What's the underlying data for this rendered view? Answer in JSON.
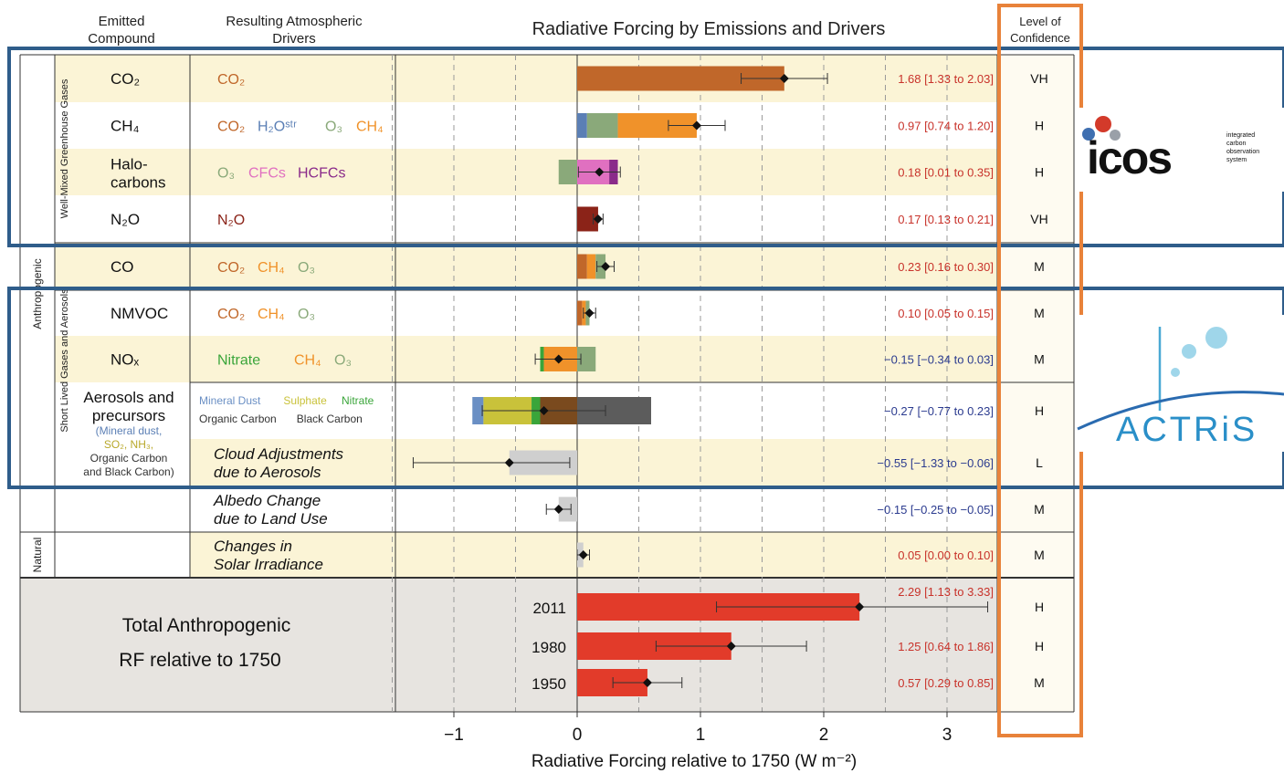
{
  "headers": {
    "emitted": [
      "Emitted",
      "Compound"
    ],
    "drivers": [
      "Resulting Atmospheric",
      "Drivers"
    ],
    "title": "Radiative Forcing by Emissions and Drivers",
    "confidence": [
      "Level of",
      "Confidence"
    ]
  },
  "groups": {
    "anthropogenic": "Anthropogenic",
    "wmghg": "Well-Mixed Greenhouse Gases",
    "slcf": "Short Lived Gases and Aerosols",
    "natural": "Natural"
  },
  "colors": {
    "co2": "#c0672a",
    "h2o": "#5b7fb5",
    "o3": "#8aa97a",
    "ch4": "#f0922a",
    "cfc": "#e070c0",
    "hcfc": "#8a2b8a",
    "n2o": "#8b2318",
    "nitrate": "#3aa53a",
    "mineral_dust": "#6a8fc4",
    "sulphate": "#c9c23a",
    "organic_carbon": "#7a4a1e",
    "black_carbon": "#5c5c5c",
    "cloud": "#cfcfcf",
    "total": "#e23b2a",
    "row_shade": "#fbf4d6",
    "value_text": "#c8322a",
    "neg_value_text": "#2b3b8f",
    "highlight_blue": "#2f5d8a",
    "highlight_orange": "#e8823a"
  },
  "rows": [
    {
      "compound": "CO₂",
      "drivers": [
        {
          "t": "CO₂",
          "c": "co2"
        }
      ],
      "value_text": "1.68 [1.33 to 2.03]",
      "confidence": "VH"
    },
    {
      "compound": "CH₄",
      "drivers": [
        {
          "t": "CO₂",
          "c": "co2"
        },
        {
          "t": "H₂Oˢᵗʳ",
          "c": "h2o"
        },
        {
          "t": "O₃",
          "c": "o3"
        },
        {
          "t": "CH₄",
          "c": "ch4"
        }
      ],
      "value_text": "0.97 [0.74 to 1.20]",
      "confidence": "H"
    },
    {
      "compound_lines": [
        "Halo-",
        "carbons"
      ],
      "drivers": [
        {
          "t": "O₃",
          "c": "o3"
        },
        {
          "t": "CFCs",
          "c": "cfc"
        },
        {
          "t": "HCFCs",
          "c": "hcfc"
        }
      ],
      "value_text": "0.18 [0.01 to 0.35]",
      "confidence": "H"
    },
    {
      "compound": "N₂O",
      "drivers": [
        {
          "t": "N₂O",
          "c": "n2o"
        }
      ],
      "value_text": "0.17 [0.13 to 0.21]",
      "confidence": "VH"
    },
    {
      "compound": "CO",
      "drivers": [
        {
          "t": "CO₂",
          "c": "co2"
        },
        {
          "t": "CH₄",
          "c": "ch4"
        },
        {
          "t": "O₃",
          "c": "o3"
        }
      ],
      "value_text": "0.23 [0.16 to 0.30]",
      "confidence": "M"
    },
    {
      "compound": "NMVOC",
      "drivers": [
        {
          "t": "CO₂",
          "c": "co2"
        },
        {
          "t": "CH₄",
          "c": "ch4"
        },
        {
          "t": "O₃",
          "c": "o3"
        }
      ],
      "value_text": "0.10 [0.05 to 0.15]",
      "confidence": "M"
    },
    {
      "compound": "NOₓ",
      "drivers": [
        {
          "t": "Nitrate",
          "c": "nitrate"
        },
        {
          "t": "CH₄",
          "c": "ch4"
        },
        {
          "t": "O₃",
          "c": "o3"
        }
      ],
      "value_text": "−0.15 [−0.34 to 0.03]",
      "confidence": "M"
    },
    {
      "compound_lines": [
        "Aerosols and",
        "precursors"
      ],
      "compound_sub": [
        "(Mineral dust,",
        "SO₂, NH₃,",
        "Organic Carbon",
        "and Black Carbon)"
      ],
      "drivers_line1": [
        {
          "t": "Mineral Dust",
          "c": "mineral_dust"
        },
        {
          "t": "Sulphate",
          "c": "sulphate"
        },
        {
          "t": "Nitrate",
          "c": "nitrate"
        }
      ],
      "drivers_line2": [
        {
          "t": "Organic Carbon",
          "c": "organic_carbon"
        },
        {
          "t": "Black Carbon",
          "c": "black_carbon"
        }
      ],
      "value_text": "−0.27 [−0.77 to 0.23]",
      "confidence": "H"
    },
    {
      "driver_lines": [
        "Cloud Adjustments",
        "due to Aerosols"
      ],
      "value_text": "−0.55 [−1.33 to −0.06]",
      "confidence": "L"
    },
    {
      "driver_lines": [
        "Albedo Change",
        "due to Land Use"
      ],
      "value_text": "−0.15 [−0.25 to −0.05]",
      "confidence": "M"
    },
    {
      "driver_lines": [
        "Changes in",
        "Solar Irradiance"
      ],
      "value_text": "0.05 [0.00 to 0.10]",
      "confidence": "M"
    }
  ],
  "total": {
    "label_lines": [
      "Total Anthropogenic",
      "RF relative to 1750"
    ],
    "years": [
      {
        "year": "2011",
        "value_text": "2.29 [1.13 to 3.33]",
        "confidence": "H"
      },
      {
        "year": "1980",
        "value_text": "1.25 [0.64 to 1.86]",
        "confidence": "H"
      },
      {
        "year": "1950",
        "value_text": "0.57 [0.29 to 0.85]",
        "confidence": "M"
      }
    ]
  },
  "logos": {
    "icos_word": "icos",
    "icos_tagline": [
      "integrated",
      "carbon",
      "observation",
      "system"
    ],
    "actris_word": "ACTRiS"
  },
  "chart_data": {
    "type": "bar",
    "orientation": "horizontal",
    "stacked": true,
    "title": "Radiative Forcing by Emissions and Drivers",
    "xlabel": "Radiative Forcing relative to 1750 (W m⁻²)",
    "xlim": [
      -1.5,
      3.4
    ],
    "xticks": [
      -1,
      0,
      1,
      2,
      3
    ],
    "xtick_labels": [
      "−1",
      "0",
      "1",
      "2",
      "3"
    ],
    "grid": "vertical dashed at 0.5 intervals",
    "rows": [
      {
        "name": "CO₂",
        "segments": [
          {
            "from": 0,
            "to": 1.68,
            "c": "co2"
          }
        ],
        "best": 1.68,
        "low": 1.33,
        "high": 2.03
      },
      {
        "name": "CH₄",
        "segments": [
          {
            "from": 0,
            "to": 0.08,
            "c": "h2o"
          },
          {
            "from": 0.08,
            "to": 0.33,
            "c": "o3"
          },
          {
            "from": 0.33,
            "to": 0.97,
            "c": "ch4"
          }
        ],
        "best": 0.97,
        "low": 0.74,
        "high": 1.2
      },
      {
        "name": "Halocarbons",
        "segments": [
          {
            "from": -0.15,
            "to": 0,
            "c": "o3"
          },
          {
            "from": 0,
            "to": 0.26,
            "c": "cfc"
          },
          {
            "from": 0.26,
            "to": 0.33,
            "c": "hcfc"
          }
        ],
        "best": 0.18,
        "low": 0.01,
        "high": 0.35
      },
      {
        "name": "N₂O",
        "segments": [
          {
            "from": 0,
            "to": 0.17,
            "c": "n2o"
          }
        ],
        "best": 0.17,
        "low": 0.13,
        "high": 0.21
      },
      {
        "name": "CO",
        "segments": [
          {
            "from": 0,
            "to": 0.08,
            "c": "co2"
          },
          {
            "from": 0.08,
            "to": 0.15,
            "c": "ch4"
          },
          {
            "from": 0.15,
            "to": 0.23,
            "c": "o3"
          }
        ],
        "best": 0.23,
        "low": 0.16,
        "high": 0.3
      },
      {
        "name": "NMVOC",
        "segments": [
          {
            "from": 0,
            "to": 0.04,
            "c": "co2"
          },
          {
            "from": 0.04,
            "to": 0.07,
            "c": "ch4"
          },
          {
            "from": 0.07,
            "to": 0.1,
            "c": "o3"
          }
        ],
        "best": 0.1,
        "low": 0.05,
        "high": 0.15
      },
      {
        "name": "NOₓ",
        "segments": [
          {
            "from": -0.3,
            "to": -0.27,
            "c": "nitrate"
          },
          {
            "from": -0.27,
            "to": 0,
            "c": "ch4"
          },
          {
            "from": 0,
            "to": 0.15,
            "c": "o3"
          }
        ],
        "best": -0.15,
        "low": -0.34,
        "high": 0.03
      },
      {
        "name": "Aerosols and precursors",
        "segments": [
          {
            "from": -0.85,
            "to": -0.76,
            "c": "mineral_dust"
          },
          {
            "from": -0.76,
            "to": -0.37,
            "c": "sulphate"
          },
          {
            "from": -0.37,
            "to": -0.3,
            "c": "nitrate"
          },
          {
            "from": -0.3,
            "to": 0,
            "c": "organic_carbon"
          },
          {
            "from": 0,
            "to": 0.6,
            "c": "black_carbon"
          }
        ],
        "best": -0.27,
        "low": -0.77,
        "high": 0.23
      },
      {
        "name": "Cloud Adjustments due to Aerosols",
        "segments": [
          {
            "from": -0.55,
            "to": 0,
            "c": "cloud"
          }
        ],
        "best": -0.55,
        "low": -1.33,
        "high": -0.06
      },
      {
        "name": "Albedo Change due to Land Use",
        "segments": [
          {
            "from": -0.15,
            "to": 0,
            "c": "cloud"
          }
        ],
        "best": -0.15,
        "low": -0.25,
        "high": -0.05
      },
      {
        "name": "Changes in Solar Irradiance",
        "segments": [
          {
            "from": 0,
            "to": 0.05,
            "c": "cloud"
          }
        ],
        "best": 0.05,
        "low": 0.0,
        "high": 0.1
      },
      {
        "name": "2011",
        "segments": [
          {
            "from": 0,
            "to": 2.29,
            "c": "total"
          }
        ],
        "best": 2.29,
        "low": 1.13,
        "high": 3.33
      },
      {
        "name": "1980",
        "segments": [
          {
            "from": 0,
            "to": 1.25,
            "c": "total"
          }
        ],
        "best": 1.25,
        "low": 0.64,
        "high": 1.86
      },
      {
        "name": "1950",
        "segments": [
          {
            "from": 0,
            "to": 0.57,
            "c": "total"
          }
        ],
        "best": 0.57,
        "low": 0.29,
        "high": 0.85
      }
    ]
  }
}
